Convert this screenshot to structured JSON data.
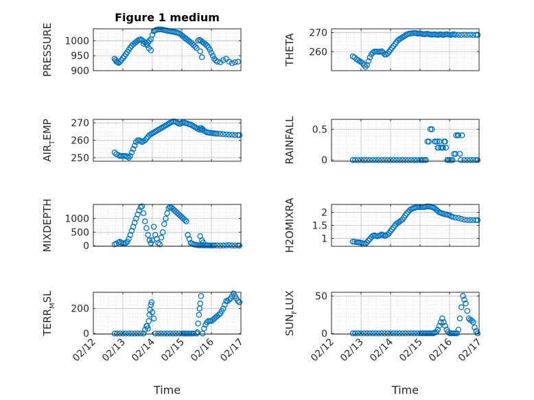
{
  "figure_title": "Figure 1 medium",
  "xlabel": "Time",
  "x_ticks": [
    "02/12",
    "02/13",
    "02/14",
    "02/15",
    "02/16",
    "02/17"
  ],
  "marker_color": "#0072BD",
  "chart_data": [
    {
      "id": "pressure",
      "type": "scatter",
      "title": "Figure 1 medium",
      "ylabel_parts": [
        "PRESSURE"
      ],
      "xlim": [
        0,
        5
      ],
      "ylim": [
        900,
        1040
      ],
      "yticks": [
        900,
        950,
        1000
      ],
      "x": [
        0.72,
        0.75,
        0.78,
        0.82,
        0.86,
        0.9,
        0.95,
        1.0,
        1.05,
        1.1,
        1.15,
        1.2,
        1.25,
        1.3,
        1.35,
        1.4,
        1.45,
        1.5,
        1.55,
        1.6,
        1.65,
        1.7,
        1.75,
        1.8,
        1.85,
        1.9,
        1.95,
        2.0,
        2.05,
        2.1,
        2.15,
        2.2,
        2.25,
        2.3,
        2.35,
        2.4,
        2.45,
        2.5,
        2.55,
        2.6,
        2.65,
        2.7,
        2.75,
        2.8,
        2.85,
        2.9,
        2.95,
        3.0,
        3.05,
        3.1,
        3.15,
        3.2,
        3.25,
        3.3,
        3.35,
        3.4,
        3.45,
        3.5,
        3.55,
        3.6,
        3.65,
        3.7,
        3.75,
        3.8,
        3.85,
        3.9,
        3.95,
        4.0,
        4.05,
        4.1,
        4.15,
        4.2,
        4.3,
        4.4,
        4.5,
        4.6,
        4.7,
        4.8,
        4.9,
        3.62,
        3.68,
        1.82,
        1.88,
        1.95,
        1.7
      ],
      "y": [
        940,
        935,
        930,
        928,
        926,
        930,
        935,
        942,
        948,
        955,
        962,
        970,
        977,
        983,
        988,
        992,
        996,
        1000,
        1003,
        1005,
        1002,
        998,
        994,
        990,
        995,
        1000,
        1005,
        1020,
        1032,
        1035,
        1037,
        1038,
        1038,
        1038,
        1037,
        1036,
        1035,
        1034,
        1033,
        1032,
        1031,
        1030,
        1029,
        1028,
        1027,
        1025,
        1022,
        1018,
        1014,
        1010,
        1006,
        1002,
        998,
        994,
        990,
        985,
        980,
        975,
        1000,
        1003,
        1000,
        996,
        992,
        988,
        984,
        978,
        970,
        960,
        950,
        940,
        934,
        930,
        928,
        935,
        940,
        930,
        925,
        928,
        930,
        965,
        945,
        985,
        975,
        968,
        990
      ]
    },
    {
      "id": "theta",
      "type": "scatter",
      "title": "",
      "ylabel_parts": [
        "THETA"
      ],
      "xlim": [
        0,
        5
      ],
      "ylim": [
        250,
        272
      ],
      "yticks": [
        260,
        270
      ],
      "x": [
        0.72,
        0.78,
        0.85,
        0.9,
        0.95,
        1.0,
        1.05,
        1.1,
        1.15,
        1.2,
        1.25,
        1.3,
        1.35,
        1.4,
        1.45,
        1.5,
        1.55,
        1.6,
        1.65,
        1.7,
        1.75,
        1.8,
        1.85,
        1.9,
        1.95,
        2.0,
        2.05,
        2.1,
        2.15,
        2.2,
        2.25,
        2.3,
        2.35,
        2.4,
        2.45,
        2.5,
        2.55,
        2.6,
        2.65,
        2.7,
        2.75,
        2.8,
        2.85,
        2.9,
        2.95,
        3.0,
        3.05,
        3.1,
        3.15,
        3.2,
        3.25,
        3.3,
        3.35,
        3.4,
        3.45,
        3.5,
        3.55,
        3.6,
        3.65,
        3.7,
        3.75,
        3.8,
        3.85,
        3.9,
        3.95,
        4.0,
        4.05,
        4.1,
        4.15,
        4.2,
        4.3,
        4.4,
        4.5,
        4.6,
        4.7,
        4.8,
        4.9,
        4.95
      ],
      "y": [
        257.5,
        257,
        256,
        255.5,
        255,
        254.5,
        254,
        253,
        252,
        253,
        255,
        257,
        258.5,
        259.5,
        260,
        260,
        260,
        259.8,
        260,
        260.2,
        259.5,
        258.5,
        258.5,
        259,
        260,
        261,
        262,
        263,
        264,
        265,
        266,
        266.5,
        267,
        267.5,
        268,
        268.5,
        269,
        269.3,
        269.5,
        269.6,
        269.7,
        269.8,
        269.8,
        269.6,
        269.5,
        269.6,
        269.4,
        269.2,
        269.1,
        269.3,
        269.4,
        269.2,
        269.0,
        268.9,
        269.0,
        269.1,
        268.9,
        268.8,
        269.0,
        269.1,
        268.9,
        268.8,
        269.0,
        269.1,
        269.0,
        268.9,
        268.8,
        269.0,
        269.1,
        268.9,
        268.9,
        268.8,
        268.9,
        268.8,
        268.9,
        268.8,
        268.9,
        268.8
      ]
    },
    {
      "id": "air_temp",
      "type": "scatter",
      "title": "",
      "ylabel_parts": [
        "AIR",
        "T",
        "EMP"
      ],
      "xlim": [
        0,
        5
      ],
      "ylim": [
        248,
        272
      ],
      "yticks": [
        250,
        260,
        270
      ],
      "x": [
        0.72,
        0.78,
        0.85,
        0.9,
        0.95,
        1.0,
        1.05,
        1.1,
        1.15,
        1.2,
        1.25,
        1.3,
        1.35,
        1.4,
        1.45,
        1.5,
        1.55,
        1.6,
        1.65,
        1.7,
        1.75,
        1.8,
        1.85,
        1.9,
        1.95,
        2.0,
        2.05,
        2.1,
        2.15,
        2.2,
        2.25,
        2.3,
        2.35,
        2.4,
        2.45,
        2.5,
        2.55,
        2.6,
        2.65,
        2.7,
        2.75,
        2.8,
        2.85,
        2.9,
        2.95,
        3.0,
        3.05,
        3.1,
        3.15,
        3.2,
        3.25,
        3.3,
        3.35,
        3.4,
        3.45,
        3.5,
        3.55,
        3.6,
        3.65,
        3.7,
        3.75,
        3.8,
        3.85,
        3.9,
        3.95,
        4.0,
        4.05,
        4.1,
        4.15,
        4.2,
        4.3,
        4.4,
        4.5,
        4.6,
        4.7,
        4.8,
        4.9,
        4.95,
        3.62,
        3.68
      ],
      "y": [
        253,
        252,
        251.5,
        251,
        251,
        251,
        251,
        251,
        250.5,
        250,
        251,
        253,
        255,
        257,
        259,
        260,
        260,
        259.5,
        259,
        259.5,
        260,
        261,
        262,
        263,
        263.5,
        264,
        264.5,
        265,
        265.5,
        266,
        266.5,
        267,
        267.5,
        268,
        268.5,
        269,
        269.5,
        270,
        270.5,
        270.8,
        270.8,
        270.5,
        270,
        269.5,
        269.5,
        270,
        270.5,
        270,
        269.8,
        269.5,
        269.2,
        269,
        268.5,
        268,
        267.5,
        267,
        266.5,
        266,
        267,
        266.5,
        265.5,
        265,
        264.5,
        264.5,
        264.3,
        264.2,
        264,
        264,
        263.8,
        263.8,
        263.6,
        263.5,
        263.4,
        263.2,
        263.2,
        263,
        263,
        263,
        267,
        266
      ]
    },
    {
      "id": "rainfall",
      "type": "scatter",
      "title": "",
      "ylabel_parts": [
        "RAINFALL"
      ],
      "xlim": [
        0,
        5
      ],
      "ylim": [
        -0.02,
        0.66
      ],
      "yticks": [
        0,
        0.5
      ],
      "x": [
        0.72,
        0.8,
        0.9,
        1.0,
        1.1,
        1.2,
        1.3,
        1.4,
        1.5,
        1.6,
        1.7,
        1.8,
        1.9,
        2.0,
        2.1,
        2.2,
        2.3,
        2.4,
        2.5,
        2.6,
        2.7,
        2.8,
        2.9,
        3.0,
        3.05,
        3.1,
        3.15,
        3.2,
        3.25,
        3.3,
        3.35,
        3.4,
        3.5,
        3.52,
        3.58,
        3.6,
        3.62,
        3.65,
        3.7,
        3.75,
        3.78,
        3.82,
        3.85,
        3.88,
        3.92,
        3.95,
        4.0,
        4.05,
        4.1,
        4.15,
        4.2,
        4.22,
        4.28,
        4.3,
        4.35,
        4.38,
        4.42,
        4.5,
        4.6,
        4.7,
        4.8,
        4.9,
        4.95
      ],
      "y": [
        0,
        0,
        0,
        0,
        0,
        0,
        0,
        0,
        0,
        0,
        0,
        0,
        0,
        0,
        0,
        0,
        0,
        0,
        0,
        0,
        0,
        0,
        0,
        0,
        0,
        0,
        0,
        0,
        0.3,
        0.3,
        0.5,
        0.5,
        0.3,
        0.3,
        0.3,
        0.2,
        0.2,
        0.3,
        0.2,
        0.2,
        0.2,
        0.3,
        0.3,
        0.2,
        0,
        0,
        0,
        0,
        0,
        0.1,
        0.1,
        0.4,
        0.4,
        0.4,
        0.1,
        0,
        0.4,
        0,
        0,
        0,
        0,
        0,
        0
      ]
    },
    {
      "id": "mixdepth",
      "type": "scatter",
      "title": "",
      "ylabel_parts": [
        "MIXDEPTH"
      ],
      "xlim": [
        0,
        5
      ],
      "ylim": [
        -20,
        1520
      ],
      "yticks": [
        0,
        500,
        1000
      ],
      "x": [
        0.72,
        0.78,
        0.85,
        0.9,
        0.95,
        1.0,
        1.05,
        1.1,
        1.15,
        1.2,
        1.25,
        1.3,
        1.35,
        1.4,
        1.45,
        1.5,
        1.55,
        1.6,
        1.65,
        1.7,
        1.75,
        1.8,
        1.85,
        1.9,
        1.95,
        2.0,
        2.05,
        2.1,
        2.15,
        2.2,
        2.25,
        2.3,
        2.35,
        2.4,
        2.45,
        2.5,
        2.55,
        2.6,
        2.65,
        2.7,
        2.75,
        2.8,
        2.85,
        2.9,
        2.95,
        3.0,
        3.05,
        3.1,
        3.15,
        3.2,
        3.25,
        3.3,
        3.35,
        3.4,
        3.45,
        3.5,
        3.55,
        3.6,
        3.65,
        3.7,
        3.75,
        3.8,
        3.85,
        3.9,
        3.95,
        4.0,
        4.05,
        4.1,
        4.2,
        4.3,
        4.4,
        4.5,
        4.6,
        4.7,
        4.8,
        4.9,
        4.95,
        3.62,
        3.68,
        3.72
      ],
      "y": [
        50,
        80,
        120,
        150,
        100,
        100,
        80,
        100,
        150,
        250,
        400,
        550,
        700,
        850,
        1000,
        1150,
        1300,
        1420,
        1450,
        1200,
        900,
        650,
        400,
        200,
        100,
        200,
        700,
        400,
        250,
        100,
        50,
        300,
        500,
        800,
        1000,
        1200,
        1380,
        1420,
        1400,
        1350,
        1300,
        1250,
        1200,
        1150,
        1100,
        1050,
        1000,
        950,
        900,
        400,
        250,
        100,
        80,
        50,
        40,
        30,
        20,
        15,
        20,
        15,
        10,
        20,
        10,
        15,
        10,
        5,
        10,
        15,
        10,
        5,
        10,
        15,
        20,
        10,
        5,
        10,
        5,
        350,
        200,
        120
      ]
    },
    {
      "id": "h2omixra",
      "type": "scatter",
      "title": "",
      "ylabel_parts": [
        "H2OMIXRA"
      ],
      "xlim": [
        0,
        5
      ],
      "ylim": [
        0.7,
        2.3
      ],
      "yticks": [
        1,
        1.5,
        2
      ],
      "x": [
        0.72,
        0.78,
        0.85,
        0.9,
        0.95,
        1.0,
        1.05,
        1.1,
        1.15,
        1.2,
        1.25,
        1.3,
        1.35,
        1.4,
        1.45,
        1.5,
        1.55,
        1.6,
        1.65,
        1.7,
        1.75,
        1.8,
        1.85,
        1.9,
        1.95,
        2.0,
        2.05,
        2.1,
        2.15,
        2.2,
        2.25,
        2.3,
        2.35,
        2.4,
        2.45,
        2.5,
        2.55,
        2.6,
        2.65,
        2.7,
        2.75,
        2.8,
        2.85,
        2.9,
        2.95,
        3.0,
        3.05,
        3.1,
        3.15,
        3.2,
        3.25,
        3.3,
        3.35,
        3.4,
        3.45,
        3.5,
        3.55,
        3.6,
        3.65,
        3.7,
        3.75,
        3.8,
        3.85,
        3.9,
        3.95,
        4.0,
        4.05,
        4.1,
        4.2,
        4.3,
        4.4,
        4.5,
        4.6,
        4.7,
        4.8,
        4.9,
        4.95
      ],
      "y": [
        0.88,
        0.87,
        0.86,
        0.85,
        0.85,
        0.83,
        0.82,
        0.8,
        0.8,
        0.85,
        0.92,
        0.98,
        1.05,
        1.1,
        1.12,
        1.1,
        1.08,
        1.1,
        1.12,
        1.15,
        1.13,
        1.1,
        1.12,
        1.15,
        1.2,
        1.28,
        1.35,
        1.42,
        1.5,
        1.56,
        1.6,
        1.64,
        1.68,
        1.72,
        1.8,
        1.88,
        1.95,
        2.02,
        2.08,
        2.12,
        2.15,
        2.17,
        2.18,
        2.2,
        2.2,
        2.2,
        2.2,
        2.2,
        2.2,
        2.22,
        2.23,
        2.22,
        2.22,
        2.2,
        2.18,
        2.15,
        2.1,
        2.05,
        2.0,
        1.98,
        1.96,
        1.94,
        1.92,
        1.92,
        1.9,
        1.88,
        1.85,
        1.82,
        1.8,
        1.78,
        1.75,
        1.72,
        1.7,
        1.7,
        1.7,
        1.7,
        1.7
      ]
    },
    {
      "id": "terr_msl",
      "type": "scatter",
      "title": "",
      "ylabel_parts": [
        "TERR",
        "M",
        "SL"
      ],
      "xlim": [
        0,
        5
      ],
      "ylim": [
        -5,
        330
      ],
      "yticks": [
        0,
        200
      ],
      "x": [
        0.72,
        0.8,
        0.9,
        1.0,
        1.1,
        1.2,
        1.3,
        1.4,
        1.5,
        1.6,
        1.7,
        1.75,
        1.8,
        1.82,
        1.85,
        1.88,
        1.9,
        1.92,
        1.95,
        1.97,
        2.0,
        2.05,
        2.1,
        2.2,
        2.3,
        2.4,
        2.5,
        2.6,
        2.7,
        2.8,
        2.9,
        3.0,
        3.05,
        3.1,
        3.15,
        3.2,
        3.25,
        3.3,
        3.35,
        3.4,
        3.5,
        3.52,
        3.55,
        3.58,
        3.6,
        3.62,
        3.65,
        3.7,
        3.75,
        3.8,
        3.85,
        3.9,
        3.95,
        4.0,
        4.05,
        4.1,
        4.15,
        4.2,
        4.25,
        4.3,
        4.35,
        4.4,
        4.45,
        4.5,
        4.55,
        4.6,
        4.65,
        4.7,
        4.75,
        4.8,
        4.85,
        4.9,
        4.95
      ],
      "y": [
        0,
        0,
        0,
        0,
        0,
        0,
        0,
        0,
        0,
        0,
        0,
        30,
        60,
        60,
        40,
        100,
        150,
        190,
        230,
        250,
        170,
        120,
        0,
        0,
        0,
        0,
        0,
        0,
        0,
        0,
        0,
        0,
        0,
        0,
        0,
        0,
        0,
        0,
        0,
        0,
        0,
        10,
        80,
        150,
        200,
        240,
        300,
        0,
        40,
        70,
        90,
        100,
        100,
        100,
        110,
        120,
        130,
        140,
        150,
        160,
        180,
        200,
        230,
        260,
        260,
        270,
        280,
        300,
        320,
        300,
        280,
        260,
        250
      ]
    },
    {
      "id": "sun_flux",
      "type": "scatter",
      "title": "",
      "ylabel_parts": [
        "SUN",
        "F",
        "LUX"
      ],
      "xlim": [
        0,
        5
      ],
      "ylim": [
        -1,
        55
      ],
      "yticks": [
        0,
        50
      ],
      "x": [
        0.72,
        0.8,
        0.9,
        1.0,
        1.1,
        1.2,
        1.3,
        1.4,
        1.5,
        1.6,
        1.7,
        1.8,
        1.9,
        2.0,
        2.1,
        2.2,
        2.3,
        2.4,
        2.5,
        2.6,
        2.7,
        2.8,
        2.9,
        3.0,
        3.05,
        3.1,
        3.15,
        3.2,
        3.25,
        3.3,
        3.35,
        3.4,
        3.45,
        3.5,
        3.55,
        3.6,
        3.65,
        3.7,
        3.75,
        3.8,
        3.85,
        3.9,
        3.95,
        4.0,
        4.05,
        4.1,
        4.15,
        4.2,
        4.25,
        4.3,
        4.35,
        4.4,
        4.45,
        4.5,
        4.55,
        4.6,
        4.65,
        4.7,
        4.75,
        4.8,
        4.85,
        4.9,
        4.95
      ],
      "y": [
        0,
        0,
        0,
        0,
        0,
        0,
        0,
        0,
        0,
        0,
        0,
        0,
        0,
        0,
        0,
        0,
        0,
        0,
        0,
        0,
        0,
        0,
        0,
        0,
        0,
        0,
        0,
        0,
        0,
        0,
        0,
        0,
        0,
        1,
        2,
        5,
        10,
        15,
        20,
        15,
        10,
        5,
        2,
        0,
        0,
        0,
        0,
        0,
        0,
        5,
        20,
        35,
        50,
        45,
        40,
        30,
        20,
        18,
        17,
        15,
        8,
        3,
        0
      ]
    }
  ]
}
